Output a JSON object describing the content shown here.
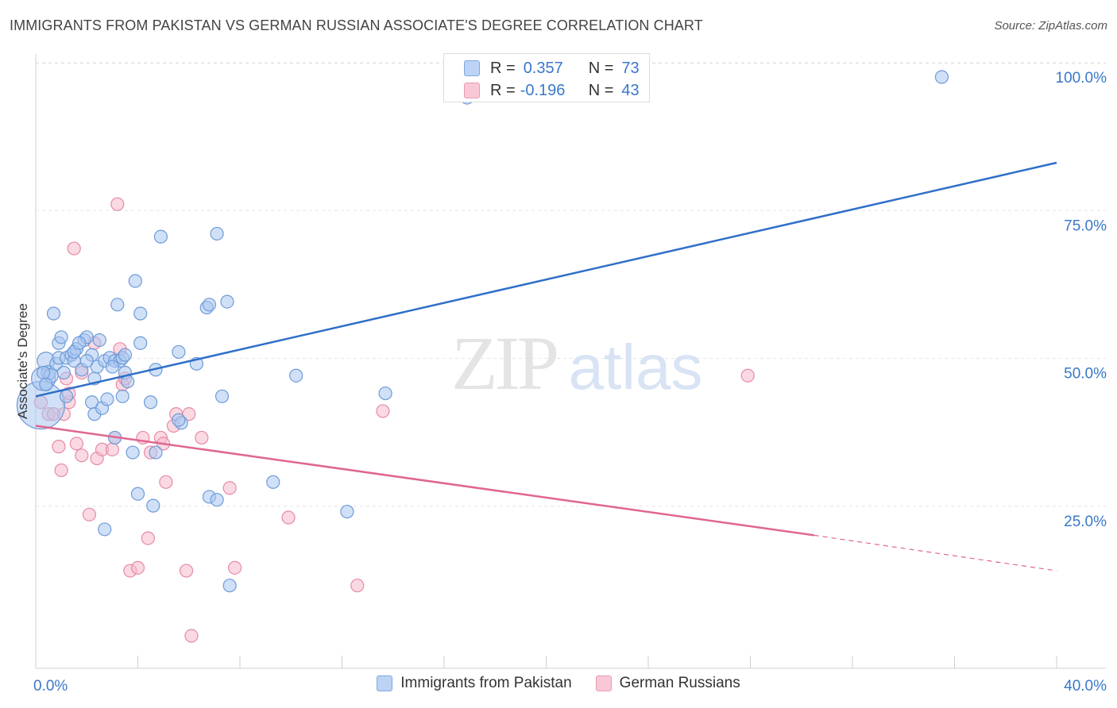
{
  "title": "IMMIGRANTS FROM PAKISTAN VS GERMAN RUSSIAN ASSOCIATE'S DEGREE CORRELATION CHART",
  "source": "Source: ZipAtlas.com",
  "watermark": {
    "zip": "ZIP",
    "atlas": "atlas"
  },
  "stats": {
    "blue": {
      "r_label": "R =",
      "r_value": "0.357",
      "n_label": "N =",
      "n_value": "73"
    },
    "pink": {
      "r_label": "R =",
      "r_value": "-0.196",
      "n_label": "N =",
      "n_value": "43"
    }
  },
  "legend": {
    "blue": "Immigrants from Pakistan",
    "pink": "German Russians"
  },
  "colors": {
    "blue_fill": "#a9c6f0",
    "blue_stroke": "#6e9bd8",
    "blue_line": "#2f6fc8",
    "pink_fill": "#f5b9cb",
    "pink_stroke": "#e68aa6",
    "pink_line": "#e0668f",
    "tick_text": "#3a78c9"
  },
  "chart_data": {
    "type": "scatter",
    "title": "IMMIGRANTS FROM PAKISTAN VS GERMAN RUSSIAN ASSOCIATE'S DEGREE CORRELATION CHART",
    "xlabel": "",
    "ylabel": "Associate's Degree",
    "xlim": [
      0,
      40
    ],
    "ylim": [
      0,
      102
    ],
    "x_tick_labels": [
      {
        "value": 0,
        "label": "0.0%"
      },
      {
        "value": 40,
        "label": "40.0%"
      }
    ],
    "y_tick_labels": [
      {
        "value": 25,
        "label": "25.0%"
      },
      {
        "value": 50,
        "label": "50.0%"
      },
      {
        "value": 75,
        "label": "75.0%"
      },
      {
        "value": 100,
        "label": "100.0%"
      }
    ],
    "grid": true,
    "series": [
      {
        "name": "Immigrants from Pakistan",
        "color": "#a9c6f0",
        "points": [
          [
            0.2,
            44.5
          ],
          [
            0.3,
            49
          ],
          [
            0.4,
            52
          ],
          [
            0.5,
            50
          ],
          [
            0.6,
            49.5
          ],
          [
            0.8,
            51.5
          ],
          [
            0.9,
            52.5
          ],
          [
            0.7,
            60
          ],
          [
            0.9,
            55
          ],
          [
            1.0,
            56
          ],
          [
            1.1,
            50
          ],
          [
            1.2,
            52.5
          ],
          [
            1.4,
            53
          ],
          [
            1.5,
            52
          ],
          [
            1.6,
            54
          ],
          [
            1.5,
            53.5
          ],
          [
            1.8,
            50.5
          ],
          [
            1.9,
            55.5
          ],
          [
            2.0,
            56
          ],
          [
            2.2,
            53
          ],
          [
            2.3,
            49
          ],
          [
            2.5,
            55.5
          ],
          [
            2.4,
            51
          ],
          [
            2.7,
            52
          ],
          [
            2.9,
            52.5
          ],
          [
            3.1,
            52
          ],
          [
            3.3,
            52
          ],
          [
            3.4,
            52.5
          ],
          [
            3.5,
            53
          ],
          [
            3.5,
            50
          ],
          [
            3.6,
            48.5
          ],
          [
            3.2,
            61.5
          ],
          [
            3.9,
            65.5
          ],
          [
            4.1,
            60
          ],
          [
            4.1,
            55
          ],
          [
            4.5,
            45
          ],
          [
            4.7,
            50.5
          ],
          [
            4.9,
            73
          ],
          [
            5.6,
            53.5
          ],
          [
            5.7,
            41.5
          ],
          [
            5.6,
            42
          ],
          [
            6.3,
            51.5
          ],
          [
            6.7,
            61
          ],
          [
            6.8,
            61.5
          ],
          [
            7.1,
            73.5
          ],
          [
            7.3,
            46
          ],
          [
            7.5,
            62
          ],
          [
            2.2,
            45
          ],
          [
            2.3,
            43
          ],
          [
            2.6,
            44
          ],
          [
            2.8,
            45.5
          ],
          [
            3.1,
            39
          ],
          [
            3.4,
            46
          ],
          [
            3.8,
            36.5
          ],
          [
            4.0,
            29.5
          ],
          [
            4.7,
            36.5
          ],
          [
            4.6,
            27.5
          ],
          [
            6.8,
            29
          ],
          [
            7.1,
            28.5
          ],
          [
            2.7,
            23.5
          ],
          [
            7.6,
            14
          ],
          [
            9.3,
            31.5
          ],
          [
            10.2,
            49.5
          ],
          [
            12.2,
            26.5
          ],
          [
            13.7,
            46.5
          ],
          [
            16.9,
            96.5
          ],
          [
            35.5,
            100
          ],
          [
            0.3,
            50
          ],
          [
            1.2,
            46
          ],
          [
            0.4,
            48
          ],
          [
            1.7,
            55
          ],
          [
            2.0,
            52
          ],
          [
            3.0,
            51
          ]
        ],
        "sizes": [
          60,
          30,
          22,
          18,
          18,
          16,
          16,
          16,
          16,
          16,
          16,
          16,
          16,
          16,
          16,
          16,
          16,
          16,
          16,
          16,
          16,
          16,
          16,
          16,
          16,
          16,
          16,
          16,
          16,
          16,
          16,
          16,
          16,
          16,
          16,
          16,
          16,
          16,
          16,
          16,
          16,
          16,
          16,
          16,
          16,
          16,
          16,
          16,
          16,
          16,
          16,
          16,
          16,
          16,
          16,
          16,
          16,
          16,
          16,
          16,
          16,
          16,
          16,
          16,
          16,
          16,
          16,
          16,
          16,
          16,
          16,
          16,
          16
        ]
      },
      {
        "name": "German Russians",
        "color": "#f5b9cb",
        "points": [
          [
            0.2,
            45
          ],
          [
            0.5,
            43
          ],
          [
            0.7,
            43
          ],
          [
            0.9,
            37.5
          ],
          [
            1.0,
            33.5
          ],
          [
            1.2,
            49
          ],
          [
            1.3,
            45
          ],
          [
            1.3,
            46.5
          ],
          [
            1.5,
            71
          ],
          [
            1.6,
            38
          ],
          [
            1.8,
            36
          ],
          [
            1.8,
            50
          ],
          [
            2.1,
            26
          ],
          [
            2.3,
            55
          ],
          [
            2.4,
            35.5
          ],
          [
            2.6,
            37
          ],
          [
            3.0,
            37
          ],
          [
            3.1,
            39
          ],
          [
            3.2,
            78.5
          ],
          [
            3.3,
            54
          ],
          [
            3.4,
            48
          ],
          [
            3.5,
            49
          ],
          [
            3.7,
            16.5
          ],
          [
            4.0,
            17
          ],
          [
            4.2,
            39
          ],
          [
            4.4,
            22
          ],
          [
            4.5,
            36.5
          ],
          [
            4.9,
            39
          ],
          [
            5.0,
            38
          ],
          [
            5.1,
            31.5
          ],
          [
            5.4,
            41
          ],
          [
            5.5,
            43
          ],
          [
            5.9,
            16.5
          ],
          [
            6.0,
            43
          ],
          [
            6.1,
            5.5
          ],
          [
            6.5,
            39
          ],
          [
            7.6,
            30.5
          ],
          [
            7.8,
            17
          ],
          [
            9.9,
            25.5
          ],
          [
            12.6,
            14
          ],
          [
            13.6,
            43.5
          ],
          [
            27.9,
            49.5
          ],
          [
            1.1,
            43
          ]
        ],
        "sizes": [
          16,
          16,
          16,
          16,
          16,
          16,
          16,
          16,
          16,
          16,
          16,
          16,
          16,
          16,
          16,
          16,
          16,
          16,
          16,
          16,
          16,
          16,
          16,
          16,
          16,
          16,
          16,
          16,
          16,
          16,
          16,
          16,
          16,
          16,
          16,
          16,
          16,
          16,
          16,
          16,
          16,
          16,
          16
        ]
      }
    ],
    "trendlines": [
      {
        "series": "Immigrants from Pakistan",
        "from": [
          0,
          46
        ],
        "to": [
          40,
          85.5
        ],
        "style": "solid"
      },
      {
        "series": "German Russians",
        "from": [
          0,
          41
        ],
        "to": [
          30.5,
          22.5
        ],
        "style": "solid"
      },
      {
        "series": "German Russians",
        "from": [
          30.5,
          22.5
        ],
        "to": [
          40,
          16.5
        ],
        "style": "dashed"
      }
    ]
  }
}
